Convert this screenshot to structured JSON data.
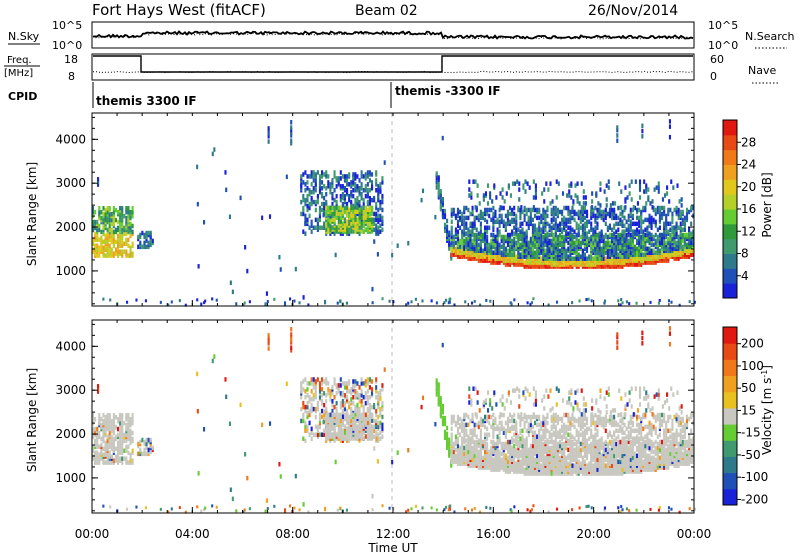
{
  "header": {
    "title": "Fort Hays West (fitACF)",
    "beam": "Beam 02",
    "date": "26/Nov/2014"
  },
  "noise_panel": {
    "left_label": "N.Sky",
    "right_label": "N.Search",
    "left_ticks": [
      "10^5",
      "10^0"
    ],
    "right_ticks": [
      "10^5",
      "10^0"
    ]
  },
  "freq_panel": {
    "left_label_1": "Freq.",
    "left_label_2": "[MHz]",
    "right_label": "Nave",
    "left_ticks": [
      "18",
      "8"
    ],
    "right_ticks": [
      "60",
      "0"
    ]
  },
  "cpid_panel": {
    "label": "CPID",
    "segments": [
      {
        "label": "themis 3300 IF",
        "start": "00:00"
      },
      {
        "label": "themis -3300 IF",
        "start": "12:00"
      }
    ]
  },
  "chart_data": [
    {
      "type": "heatmap",
      "name": "power",
      "ylabel": "Slant Range [km]",
      "xlabel": "Time UT",
      "x_ticks": [
        "00:00",
        "04:00",
        "08:00",
        "12:00",
        "16:00",
        "20:00",
        "00:00"
      ],
      "y_ticks": [
        1000,
        2000,
        3000,
        4000
      ],
      "ylim": [
        200,
        4600
      ],
      "colorbar": {
        "label": "Power [dB]",
        "ticks": [
          4,
          8,
          12,
          16,
          20,
          24,
          28
        ],
        "colors": [
          "#1a22d8",
          "#1f50b8",
          "#2f7a8a",
          "#3f9a70",
          "#2f9a3a",
          "#66cc33",
          "#b6d02a",
          "#e0c81c",
          "#f0a020",
          "#f07a18",
          "#e84a14",
          "#e01810"
        ]
      }
    },
    {
      "type": "heatmap",
      "name": "velocity",
      "ylabel": "Slant Range [km]",
      "xlabel": "Time UT",
      "x_ticks": [
        "00:00",
        "04:00",
        "08:00",
        "12:00",
        "16:00",
        "20:00",
        "00:00"
      ],
      "y_ticks": [
        1000,
        2000,
        3000,
        4000
      ],
      "ylim": [
        200,
        4600
      ],
      "colorbar": {
        "label": "Velocity [m s^-1]",
        "ticks": [
          200,
          100,
          50,
          15,
          -15,
          -50,
          -100,
          -200
        ],
        "colors": [
          "#1a22d8",
          "#1f50b8",
          "#2f7a8a",
          "#3f9a70",
          "#66cc33",
          "#c8c8c0",
          "#e8c020",
          "#f0a020",
          "#f07818",
          "#e84a14",
          "#e01810"
        ]
      }
    }
  ]
}
